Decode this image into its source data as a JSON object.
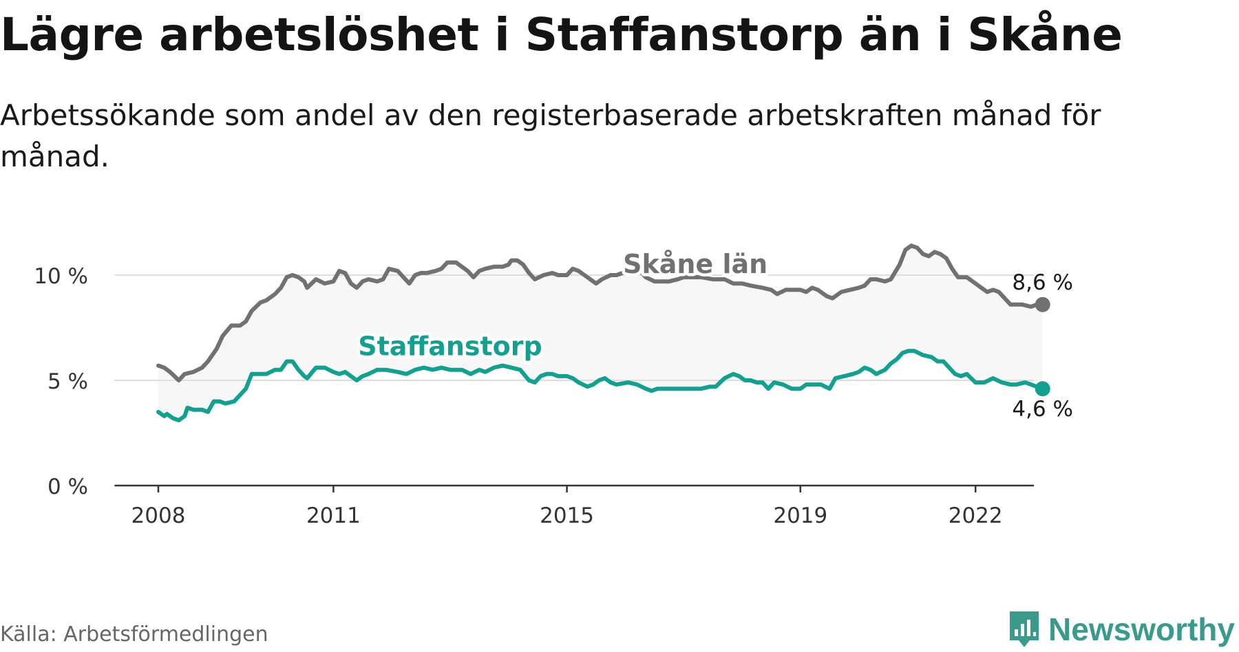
{
  "title": "Lägre arbetslöshet i Staffanstorp än i Skåne",
  "subtitle": "Arbetssökande som andel av den registerbaserade arbetskraften månad för månad.",
  "source": "Källa: Arbetsförmedlingen",
  "brand": {
    "name": "Newsworthy",
    "icon": "newsworthy-logo-icon",
    "color": "#3a9a8c"
  },
  "chart_data": {
    "type": "line",
    "ylim": [
      0,
      12
    ],
    "y_ticks": [
      {
        "value": 0,
        "label": "0 %"
      },
      {
        "value": 5,
        "label": "5 %"
      },
      {
        "value": 10,
        "label": "10 %"
      }
    ],
    "x_ticks": [
      {
        "value": 2008,
        "label": "2008"
      },
      {
        "value": 2011,
        "label": "2011"
      },
      {
        "value": 2015,
        "label": "2015"
      },
      {
        "value": 2019,
        "label": "2019"
      },
      {
        "value": 2022,
        "label": "2022"
      }
    ],
    "x_range": [
      2007.25,
      2023.0
    ],
    "grid": true,
    "band_fill": "#f7f7f7",
    "series": [
      {
        "name": "Skåne län",
        "color": "#717171",
        "end_label": "8,6 %",
        "points": [
          [
            2008.0,
            5.7
          ],
          [
            2008.1,
            5.6
          ],
          [
            2008.2,
            5.4
          ],
          [
            2008.35,
            5.0
          ],
          [
            2008.45,
            5.3
          ],
          [
            2008.6,
            5.4
          ],
          [
            2008.75,
            5.6
          ],
          [
            2008.85,
            5.9
          ],
          [
            2009.0,
            6.5
          ],
          [
            2009.1,
            7.1
          ],
          [
            2009.25,
            7.6
          ],
          [
            2009.4,
            7.6
          ],
          [
            2009.5,
            7.8
          ],
          [
            2009.6,
            8.3
          ],
          [
            2009.75,
            8.7
          ],
          [
            2009.85,
            8.8
          ],
          [
            2010.0,
            9.1
          ],
          [
            2010.1,
            9.4
          ],
          [
            2010.2,
            9.9
          ],
          [
            2010.3,
            10.0
          ],
          [
            2010.4,
            9.9
          ],
          [
            2010.5,
            9.7
          ],
          [
            2010.55,
            9.4
          ],
          [
            2010.7,
            9.8
          ],
          [
            2010.85,
            9.6
          ],
          [
            2011.0,
            9.7
          ],
          [
            2011.1,
            10.2
          ],
          [
            2011.2,
            10.1
          ],
          [
            2011.3,
            9.6
          ],
          [
            2011.4,
            9.4
          ],
          [
            2011.5,
            9.7
          ],
          [
            2011.6,
            9.8
          ],
          [
            2011.75,
            9.7
          ],
          [
            2011.85,
            9.8
          ],
          [
            2011.95,
            10.3
          ],
          [
            2012.1,
            10.2
          ],
          [
            2012.2,
            9.9
          ],
          [
            2012.3,
            9.6
          ],
          [
            2012.4,
            10.0
          ],
          [
            2012.5,
            10.1
          ],
          [
            2012.6,
            10.1
          ],
          [
            2012.75,
            10.2
          ],
          [
            2012.85,
            10.3
          ],
          [
            2012.95,
            10.6
          ],
          [
            2013.1,
            10.6
          ],
          [
            2013.2,
            10.4
          ],
          [
            2013.3,
            10.2
          ],
          [
            2013.4,
            9.9
          ],
          [
            2013.5,
            10.2
          ],
          [
            2013.6,
            10.3
          ],
          [
            2013.75,
            10.4
          ],
          [
            2013.9,
            10.4
          ],
          [
            2014.0,
            10.5
          ],
          [
            2014.05,
            10.7
          ],
          [
            2014.15,
            10.7
          ],
          [
            2014.25,
            10.5
          ],
          [
            2014.35,
            10.1
          ],
          [
            2014.45,
            9.8
          ],
          [
            2014.6,
            10.0
          ],
          [
            2014.75,
            10.1
          ],
          [
            2014.85,
            10.0
          ],
          [
            2015.0,
            10.0
          ],
          [
            2015.1,
            10.3
          ],
          [
            2015.2,
            10.2
          ],
          [
            2015.3,
            10.0
          ],
          [
            2015.4,
            9.8
          ],
          [
            2015.5,
            9.6
          ],
          [
            2015.6,
            9.8
          ],
          [
            2015.75,
            10.0
          ],
          [
            2015.85,
            10.0
          ],
          [
            2015.95,
            10.1
          ],
          [
            2016.05,
            10.1
          ],
          [
            2016.15,
            10.3
          ],
          [
            2016.25,
            10.2
          ],
          [
            2016.35,
            9.9
          ],
          [
            2016.5,
            9.7
          ],
          [
            2016.6,
            9.7
          ],
          [
            2016.75,
            9.7
          ],
          [
            2016.9,
            9.8
          ],
          [
            2017.0,
            9.9
          ],
          [
            2017.1,
            9.9
          ],
          [
            2017.3,
            9.9
          ],
          [
            2017.5,
            9.8
          ],
          [
            2017.7,
            9.8
          ],
          [
            2017.85,
            9.6
          ],
          [
            2018.0,
            9.6
          ],
          [
            2018.15,
            9.5
          ],
          [
            2018.35,
            9.4
          ],
          [
            2018.5,
            9.3
          ],
          [
            2018.6,
            9.1
          ],
          [
            2018.75,
            9.3
          ],
          [
            2018.85,
            9.3
          ],
          [
            2019.0,
            9.3
          ],
          [
            2019.1,
            9.2
          ],
          [
            2019.2,
            9.4
          ],
          [
            2019.3,
            9.3
          ],
          [
            2019.45,
            9.0
          ],
          [
            2019.55,
            8.9
          ],
          [
            2019.7,
            9.2
          ],
          [
            2019.85,
            9.3
          ],
          [
            2020.0,
            9.4
          ],
          [
            2020.1,
            9.5
          ],
          [
            2020.2,
            9.8
          ],
          [
            2020.3,
            9.8
          ],
          [
            2020.45,
            9.7
          ],
          [
            2020.55,
            9.8
          ],
          [
            2020.7,
            10.5
          ],
          [
            2020.8,
            11.2
          ],
          [
            2020.9,
            11.4
          ],
          [
            2021.0,
            11.3
          ],
          [
            2021.1,
            11.0
          ],
          [
            2021.2,
            10.9
          ],
          [
            2021.3,
            11.1
          ],
          [
            2021.4,
            11.0
          ],
          [
            2021.5,
            10.8
          ],
          [
            2021.6,
            10.3
          ],
          [
            2021.7,
            9.9
          ],
          [
            2021.85,
            9.9
          ],
          [
            2022.0,
            9.6
          ],
          [
            2022.1,
            9.4
          ],
          [
            2022.2,
            9.2
          ],
          [
            2022.3,
            9.3
          ],
          [
            2022.4,
            9.2
          ],
          [
            2022.5,
            8.9
          ],
          [
            2022.6,
            8.6
          ],
          [
            2022.7,
            8.6
          ],
          [
            2022.8,
            8.6
          ],
          [
            2022.95,
            8.5
          ],
          [
            2023.05,
            8.6
          ],
          [
            2023.15,
            8.6
          ]
        ]
      },
      {
        "name": "Staffanstorp",
        "color": "#13a090",
        "end_label": "4,6 %",
        "points": [
          [
            2008.0,
            3.5
          ],
          [
            2008.1,
            3.3
          ],
          [
            2008.15,
            3.4
          ],
          [
            2008.25,
            3.2
          ],
          [
            2008.35,
            3.1
          ],
          [
            2008.45,
            3.3
          ],
          [
            2008.5,
            3.7
          ],
          [
            2008.6,
            3.6
          ],
          [
            2008.75,
            3.6
          ],
          [
            2008.85,
            3.5
          ],
          [
            2008.95,
            4.0
          ],
          [
            2009.05,
            4.0
          ],
          [
            2009.15,
            3.9
          ],
          [
            2009.3,
            4.0
          ],
          [
            2009.4,
            4.3
          ],
          [
            2009.5,
            4.6
          ],
          [
            2009.6,
            5.3
          ],
          [
            2009.75,
            5.3
          ],
          [
            2009.85,
            5.3
          ],
          [
            2010.0,
            5.5
          ],
          [
            2010.1,
            5.5
          ],
          [
            2010.2,
            5.9
          ],
          [
            2010.3,
            5.9
          ],
          [
            2010.4,
            5.5
          ],
          [
            2010.5,
            5.2
          ],
          [
            2010.55,
            5.1
          ],
          [
            2010.7,
            5.6
          ],
          [
            2010.85,
            5.6
          ],
          [
            2011.0,
            5.4
          ],
          [
            2011.1,
            5.3
          ],
          [
            2011.2,
            5.4
          ],
          [
            2011.3,
            5.2
          ],
          [
            2011.4,
            5.0
          ],
          [
            2011.5,
            5.2
          ],
          [
            2011.6,
            5.3
          ],
          [
            2011.75,
            5.5
          ],
          [
            2011.9,
            5.5
          ],
          [
            2012.1,
            5.4
          ],
          [
            2012.25,
            5.3
          ],
          [
            2012.4,
            5.5
          ],
          [
            2012.55,
            5.6
          ],
          [
            2012.7,
            5.5
          ],
          [
            2012.85,
            5.6
          ],
          [
            2013.0,
            5.5
          ],
          [
            2013.2,
            5.5
          ],
          [
            2013.35,
            5.3
          ],
          [
            2013.5,
            5.5
          ],
          [
            2013.6,
            5.4
          ],
          [
            2013.75,
            5.6
          ],
          [
            2013.9,
            5.7
          ],
          [
            2014.05,
            5.6
          ],
          [
            2014.2,
            5.5
          ],
          [
            2014.35,
            5.0
          ],
          [
            2014.45,
            4.9
          ],
          [
            2014.55,
            5.2
          ],
          [
            2014.65,
            5.3
          ],
          [
            2014.75,
            5.3
          ],
          [
            2014.85,
            5.2
          ],
          [
            2015.0,
            5.2
          ],
          [
            2015.1,
            5.1
          ],
          [
            2015.2,
            4.9
          ],
          [
            2015.35,
            4.7
          ],
          [
            2015.45,
            4.8
          ],
          [
            2015.55,
            5.0
          ],
          [
            2015.65,
            5.1
          ],
          [
            2015.75,
            4.9
          ],
          [
            2015.85,
            4.8
          ],
          [
            2016.05,
            4.9
          ],
          [
            2016.2,
            4.8
          ],
          [
            2016.35,
            4.6
          ],
          [
            2016.45,
            4.5
          ],
          [
            2016.55,
            4.6
          ],
          [
            2016.7,
            4.6
          ],
          [
            2016.85,
            4.6
          ],
          [
            2017.0,
            4.6
          ],
          [
            2017.15,
            4.6
          ],
          [
            2017.3,
            4.6
          ],
          [
            2017.45,
            4.7
          ],
          [
            2017.55,
            4.7
          ],
          [
            2017.7,
            5.1
          ],
          [
            2017.85,
            5.3
          ],
          [
            2017.95,
            5.2
          ],
          [
            2018.05,
            5.0
          ],
          [
            2018.15,
            5.0
          ],
          [
            2018.25,
            4.9
          ],
          [
            2018.35,
            4.9
          ],
          [
            2018.45,
            4.6
          ],
          [
            2018.55,
            4.9
          ],
          [
            2018.7,
            4.8
          ],
          [
            2018.85,
            4.6
          ],
          [
            2019.0,
            4.6
          ],
          [
            2019.1,
            4.8
          ],
          [
            2019.25,
            4.8
          ],
          [
            2019.35,
            4.8
          ],
          [
            2019.5,
            4.6
          ],
          [
            2019.6,
            5.1
          ],
          [
            2019.75,
            5.2
          ],
          [
            2019.9,
            5.3
          ],
          [
            2020.0,
            5.4
          ],
          [
            2020.1,
            5.6
          ],
          [
            2020.2,
            5.5
          ],
          [
            2020.3,
            5.3
          ],
          [
            2020.45,
            5.5
          ],
          [
            2020.55,
            5.8
          ],
          [
            2020.65,
            6.0
          ],
          [
            2020.75,
            6.3
          ],
          [
            2020.85,
            6.4
          ],
          [
            2020.95,
            6.4
          ],
          [
            2021.1,
            6.2
          ],
          [
            2021.25,
            6.1
          ],
          [
            2021.35,
            5.9
          ],
          [
            2021.45,
            5.9
          ],
          [
            2021.55,
            5.6
          ],
          [
            2021.65,
            5.3
          ],
          [
            2021.75,
            5.2
          ],
          [
            2021.85,
            5.3
          ],
          [
            2022.0,
            4.9
          ],
          [
            2022.15,
            4.9
          ],
          [
            2022.3,
            5.1
          ],
          [
            2022.45,
            4.9
          ],
          [
            2022.6,
            4.8
          ],
          [
            2022.7,
            4.8
          ],
          [
            2022.85,
            4.9
          ],
          [
            2022.95,
            4.8
          ],
          [
            2023.05,
            4.7
          ],
          [
            2023.15,
            4.6
          ]
        ]
      }
    ],
    "annotations": [
      {
        "text": "Skåne län",
        "series": "Skåne län",
        "x": 2017.2,
        "y": 10.1
      },
      {
        "text": "Staffanstorp",
        "series": "Staffanstorp",
        "x": 2013.0,
        "y": 6.2
      }
    ]
  }
}
